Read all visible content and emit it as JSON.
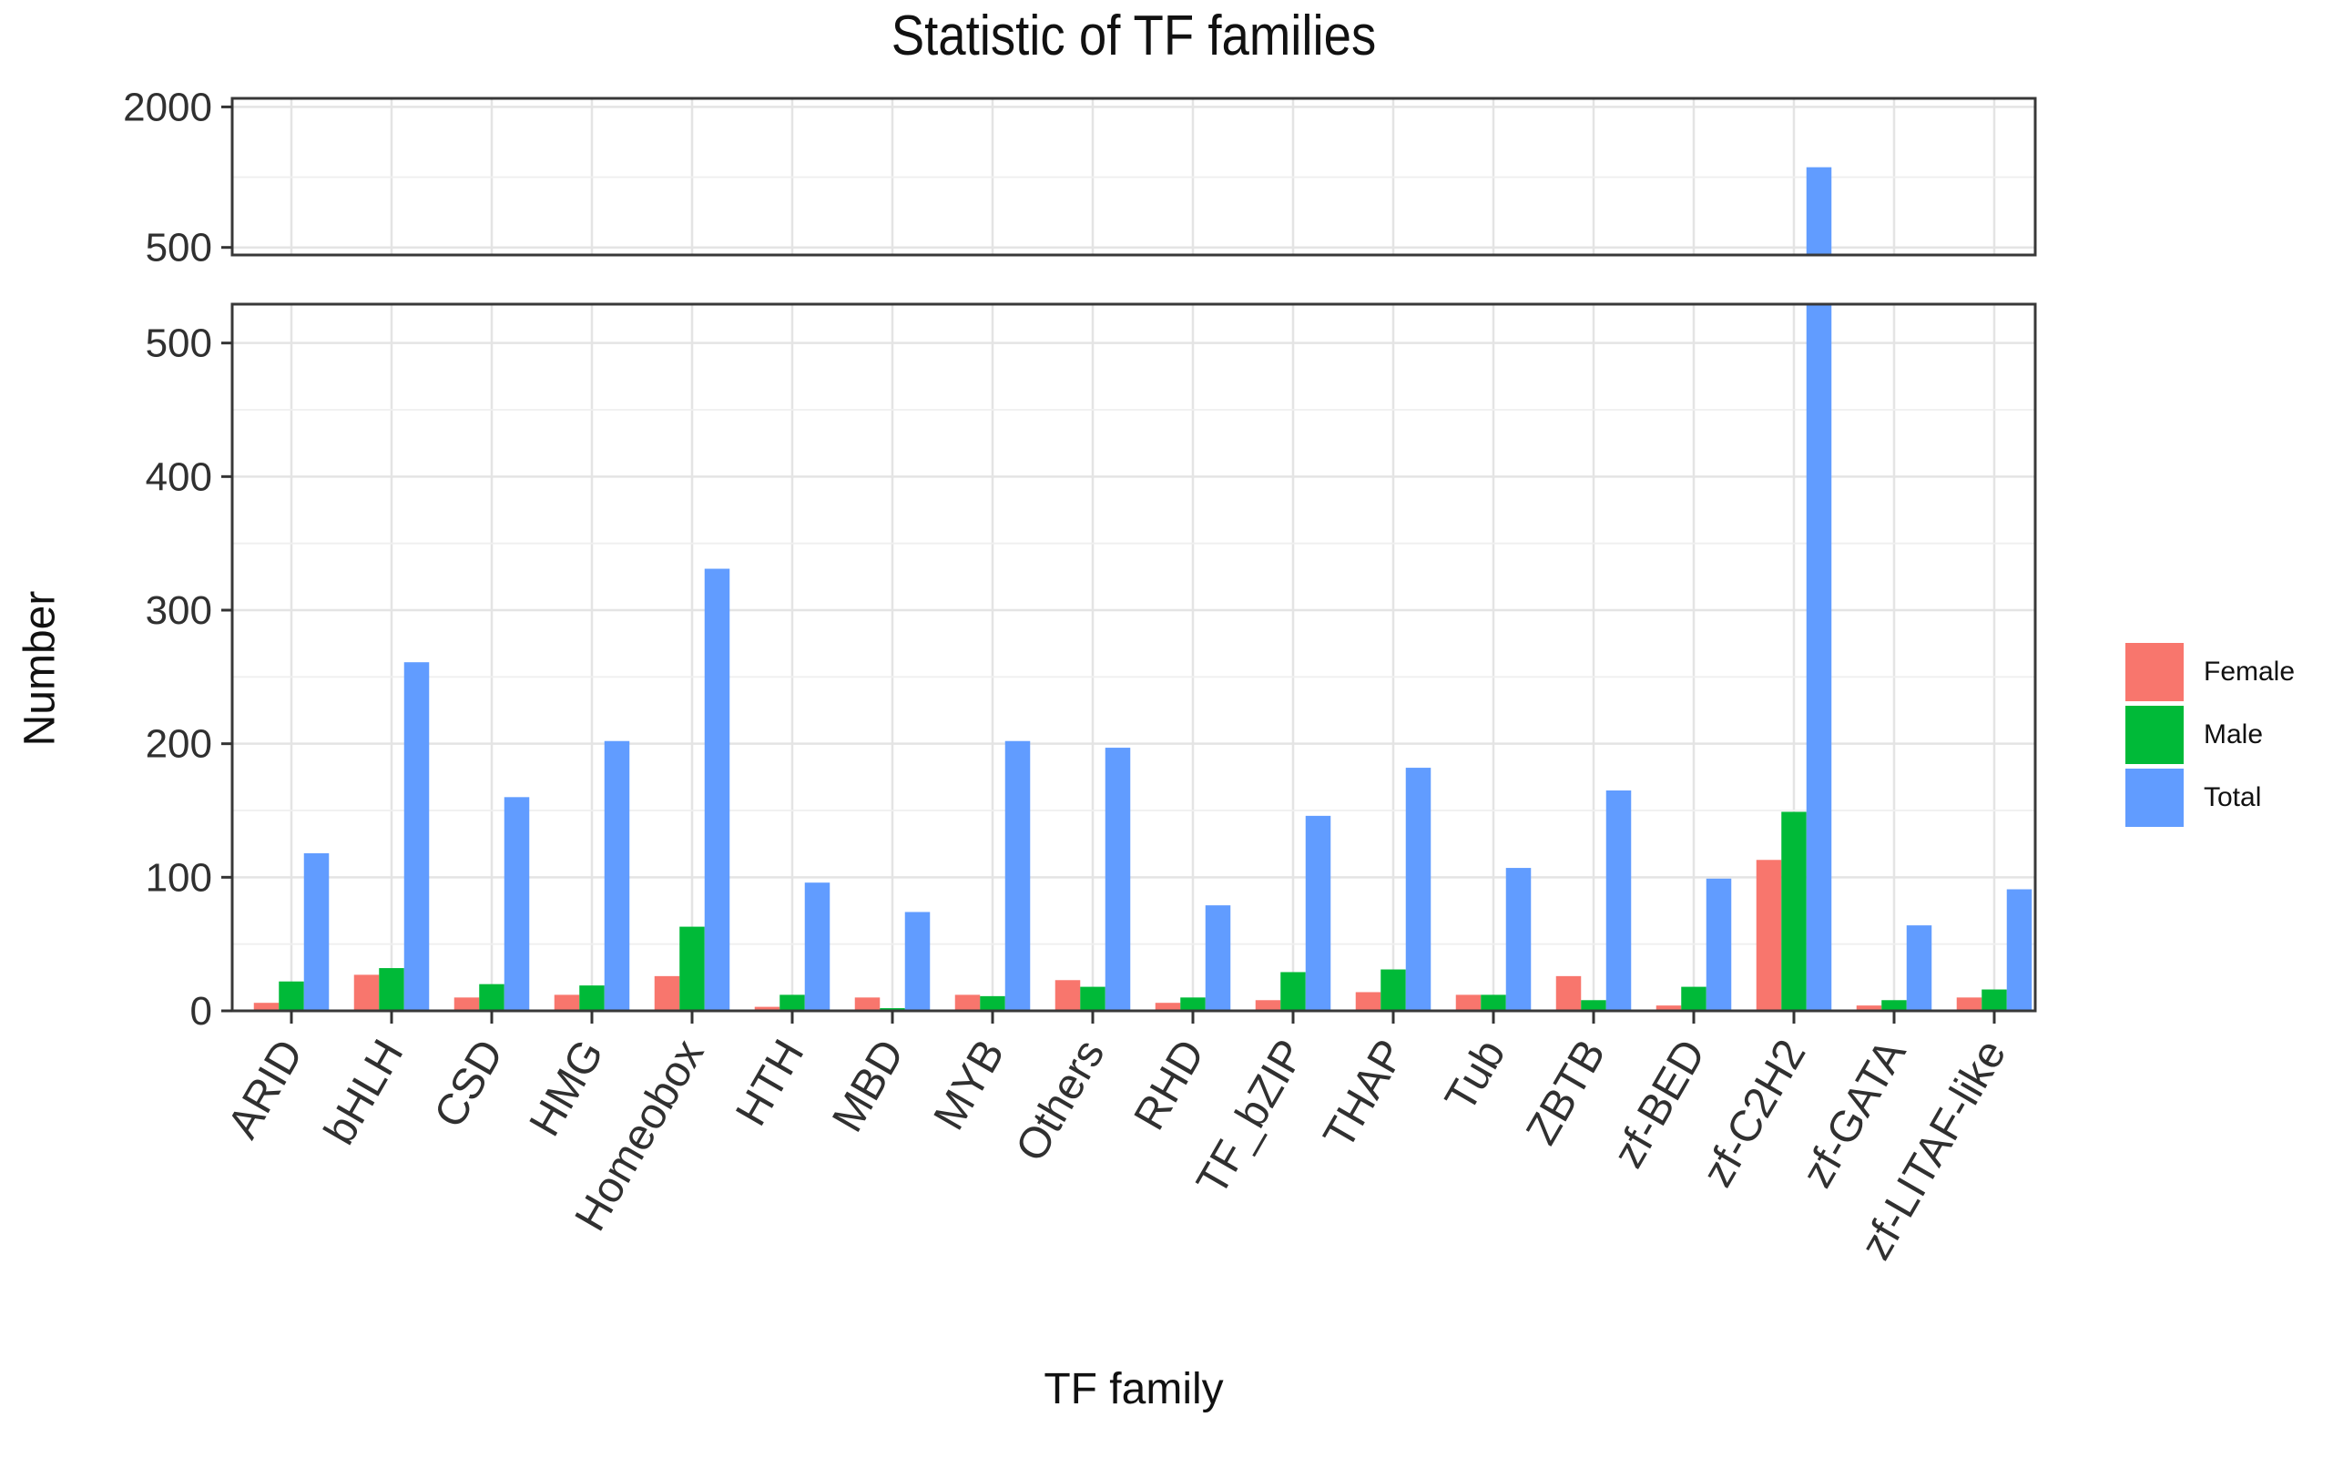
{
  "title": "Statistic of TF families",
  "axes": {
    "x_label": "TF family",
    "y_label": "Number"
  },
  "legend": {
    "position": "right",
    "entries": [
      {
        "label": "Female",
        "color": "#F8766D"
      },
      {
        "label": "Male",
        "color": "#00BA38"
      },
      {
        "label": "Total",
        "color": "#619CFF"
      }
    ]
  },
  "chart_data": {
    "type": "bar",
    "title": "Statistic of TF families",
    "xlabel": "TF family",
    "ylabel": "Number",
    "grid": true,
    "legend_position": "right",
    "categories": [
      "ARID",
      "bHLH",
      "CSD",
      "HMG",
      "Homeobox",
      "HTH",
      "MBD",
      "MYB",
      "Others",
      "RHD",
      "TF_bZIP",
      "THAP",
      "Tub",
      "ZBTB",
      "zf-BED",
      "zf-C2H2",
      "zf-GATA",
      "zf-LITAF-like"
    ],
    "series": [
      {
        "name": "Female",
        "color": "#F8766D",
        "values": [
          6,
          27,
          10,
          12,
          26,
          3,
          10,
          12,
          23,
          6,
          8,
          14,
          12,
          26,
          4,
          113,
          4,
          10
        ]
      },
      {
        "name": "Male",
        "color": "#00BA38",
        "values": [
          22,
          32,
          20,
          19,
          63,
          12,
          2,
          11,
          18,
          10,
          29,
          31,
          12,
          8,
          18,
          149,
          8,
          16
        ]
      },
      {
        "name": "Total",
        "color": "#619CFF",
        "values": [
          118,
          261,
          160,
          202,
          331,
          96,
          74,
          202,
          197,
          79,
          146,
          182,
          107,
          165,
          99,
          1356,
          64,
          91
        ]
      }
    ],
    "broken_y_axis": {
      "top_panel": {
        "ylim": [
          412,
          2075
        ],
        "ticks": [
          500,
          2000
        ],
        "minor_ticks": [
          1250
        ]
      },
      "bottom_panel": {
        "ylim": [
          0,
          529
        ],
        "ticks": [
          0,
          100,
          200,
          300,
          400,
          500
        ],
        "minor_ticks": [
          50,
          150,
          250,
          350,
          450
        ]
      }
    },
    "styles": {
      "panel_border_color": "#383838",
      "grid_major_color": "#E4E4E4",
      "grid_minor_color": "#EFEFEF",
      "tick_color": "#333333",
      "tick_label_color": "#303030"
    }
  }
}
